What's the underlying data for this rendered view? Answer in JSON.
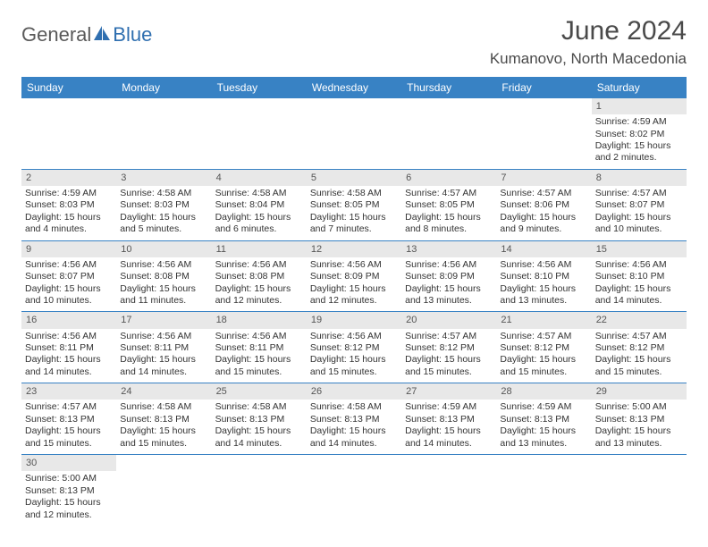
{
  "brand": {
    "text1": "General",
    "text2": "Blue",
    "logo_color": "#2f6fb0"
  },
  "title": "June 2024",
  "location": "Kumanovo, North Macedonia",
  "header_bg": "#3882c4",
  "daynum_bg": "#e8e8e8",
  "columns": [
    "Sunday",
    "Monday",
    "Tuesday",
    "Wednesday",
    "Thursday",
    "Friday",
    "Saturday"
  ],
  "weeks": [
    [
      null,
      null,
      null,
      null,
      null,
      null,
      {
        "n": "1",
        "sr": "4:59 AM",
        "ss": "8:02 PM",
        "dl": "15 hours and 2 minutes."
      }
    ],
    [
      {
        "n": "2",
        "sr": "4:59 AM",
        "ss": "8:03 PM",
        "dl": "15 hours and 4 minutes."
      },
      {
        "n": "3",
        "sr": "4:58 AM",
        "ss": "8:03 PM",
        "dl": "15 hours and 5 minutes."
      },
      {
        "n": "4",
        "sr": "4:58 AM",
        "ss": "8:04 PM",
        "dl": "15 hours and 6 minutes."
      },
      {
        "n": "5",
        "sr": "4:58 AM",
        "ss": "8:05 PM",
        "dl": "15 hours and 7 minutes."
      },
      {
        "n": "6",
        "sr": "4:57 AM",
        "ss": "8:05 PM",
        "dl": "15 hours and 8 minutes."
      },
      {
        "n": "7",
        "sr": "4:57 AM",
        "ss": "8:06 PM",
        "dl": "15 hours and 9 minutes."
      },
      {
        "n": "8",
        "sr": "4:57 AM",
        "ss": "8:07 PM",
        "dl": "15 hours and 10 minutes."
      }
    ],
    [
      {
        "n": "9",
        "sr": "4:56 AM",
        "ss": "8:07 PM",
        "dl": "15 hours and 10 minutes."
      },
      {
        "n": "10",
        "sr": "4:56 AM",
        "ss": "8:08 PM",
        "dl": "15 hours and 11 minutes."
      },
      {
        "n": "11",
        "sr": "4:56 AM",
        "ss": "8:08 PM",
        "dl": "15 hours and 12 minutes."
      },
      {
        "n": "12",
        "sr": "4:56 AM",
        "ss": "8:09 PM",
        "dl": "15 hours and 12 minutes."
      },
      {
        "n": "13",
        "sr": "4:56 AM",
        "ss": "8:09 PM",
        "dl": "15 hours and 13 minutes."
      },
      {
        "n": "14",
        "sr": "4:56 AM",
        "ss": "8:10 PM",
        "dl": "15 hours and 13 minutes."
      },
      {
        "n": "15",
        "sr": "4:56 AM",
        "ss": "8:10 PM",
        "dl": "15 hours and 14 minutes."
      }
    ],
    [
      {
        "n": "16",
        "sr": "4:56 AM",
        "ss": "8:11 PM",
        "dl": "15 hours and 14 minutes."
      },
      {
        "n": "17",
        "sr": "4:56 AM",
        "ss": "8:11 PM",
        "dl": "15 hours and 14 minutes."
      },
      {
        "n": "18",
        "sr": "4:56 AM",
        "ss": "8:11 PM",
        "dl": "15 hours and 15 minutes."
      },
      {
        "n": "19",
        "sr": "4:56 AM",
        "ss": "8:12 PM",
        "dl": "15 hours and 15 minutes."
      },
      {
        "n": "20",
        "sr": "4:57 AM",
        "ss": "8:12 PM",
        "dl": "15 hours and 15 minutes."
      },
      {
        "n": "21",
        "sr": "4:57 AM",
        "ss": "8:12 PM",
        "dl": "15 hours and 15 minutes."
      },
      {
        "n": "22",
        "sr": "4:57 AM",
        "ss": "8:12 PM",
        "dl": "15 hours and 15 minutes."
      }
    ],
    [
      {
        "n": "23",
        "sr": "4:57 AM",
        "ss": "8:13 PM",
        "dl": "15 hours and 15 minutes."
      },
      {
        "n": "24",
        "sr": "4:58 AM",
        "ss": "8:13 PM",
        "dl": "15 hours and 15 minutes."
      },
      {
        "n": "25",
        "sr": "4:58 AM",
        "ss": "8:13 PM",
        "dl": "15 hours and 14 minutes."
      },
      {
        "n": "26",
        "sr": "4:58 AM",
        "ss": "8:13 PM",
        "dl": "15 hours and 14 minutes."
      },
      {
        "n": "27",
        "sr": "4:59 AM",
        "ss": "8:13 PM",
        "dl": "15 hours and 14 minutes."
      },
      {
        "n": "28",
        "sr": "4:59 AM",
        "ss": "8:13 PM",
        "dl": "15 hours and 13 minutes."
      },
      {
        "n": "29",
        "sr": "5:00 AM",
        "ss": "8:13 PM",
        "dl": "15 hours and 13 minutes."
      }
    ],
    [
      {
        "n": "30",
        "sr": "5:00 AM",
        "ss": "8:13 PM",
        "dl": "15 hours and 12 minutes."
      },
      null,
      null,
      null,
      null,
      null,
      null
    ]
  ],
  "labels": {
    "sunrise": "Sunrise:",
    "sunset": "Sunset:",
    "daylight": "Daylight:"
  }
}
